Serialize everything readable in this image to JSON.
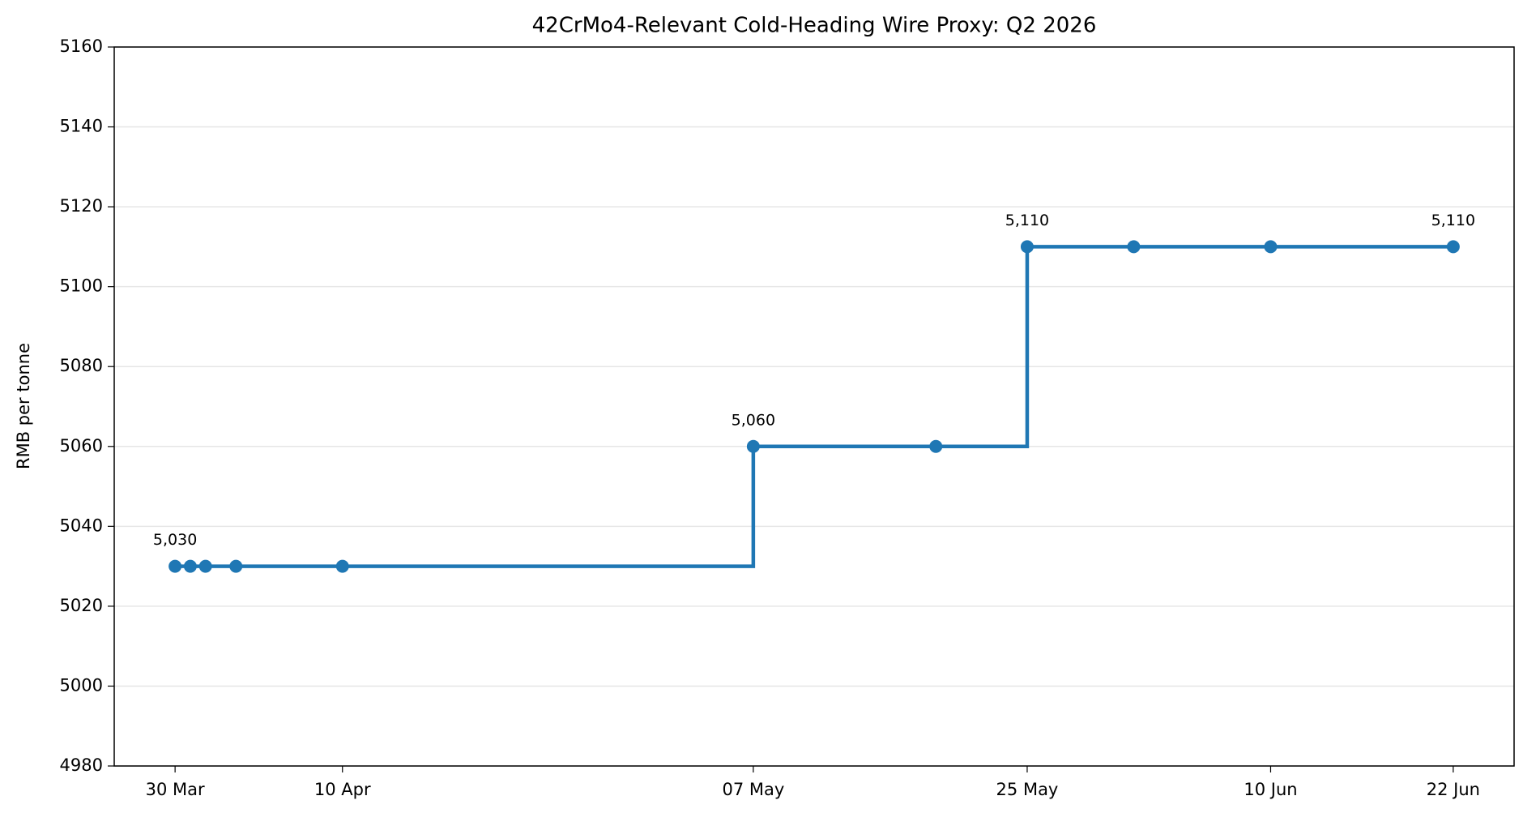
{
  "chart_data": {
    "type": "step",
    "title": "42CrMo4-Relevant Cold-Heading Wire Proxy: Q2 2026",
    "y_label": "RMB per tonne",
    "x": [
      "30 Mar",
      "31 Mar",
      "01 Apr",
      "03 Apr",
      "10 Apr",
      "07 May",
      "19 May",
      "25 May",
      "01 Jun",
      "10 Jun",
      "22 Jun"
    ],
    "series": [
      {
        "color": "#1f77b4",
        "values": [
          5030,
          5030,
          5030,
          5030,
          5030,
          5060,
          5060,
          5110,
          5110,
          5110,
          5110
        ],
        "value_labels": [
          "5,030",
          null,
          null,
          null,
          null,
          "5,060",
          null,
          "5,110",
          null,
          null,
          "5,110"
        ]
      }
    ],
    "xlim": [
      "26 Mar",
      "26 Jun"
    ],
    "xticks": [
      "30 Mar",
      "10 Apr",
      "07 May",
      "25 May",
      "10 Jun",
      "22 Jun"
    ],
    "ylim": [
      4980,
      5160
    ],
    "yticks": [
      4980,
      5000,
      5020,
      5040,
      5060,
      5080,
      5100,
      5120,
      5140,
      5160
    ],
    "grid": "y"
  }
}
